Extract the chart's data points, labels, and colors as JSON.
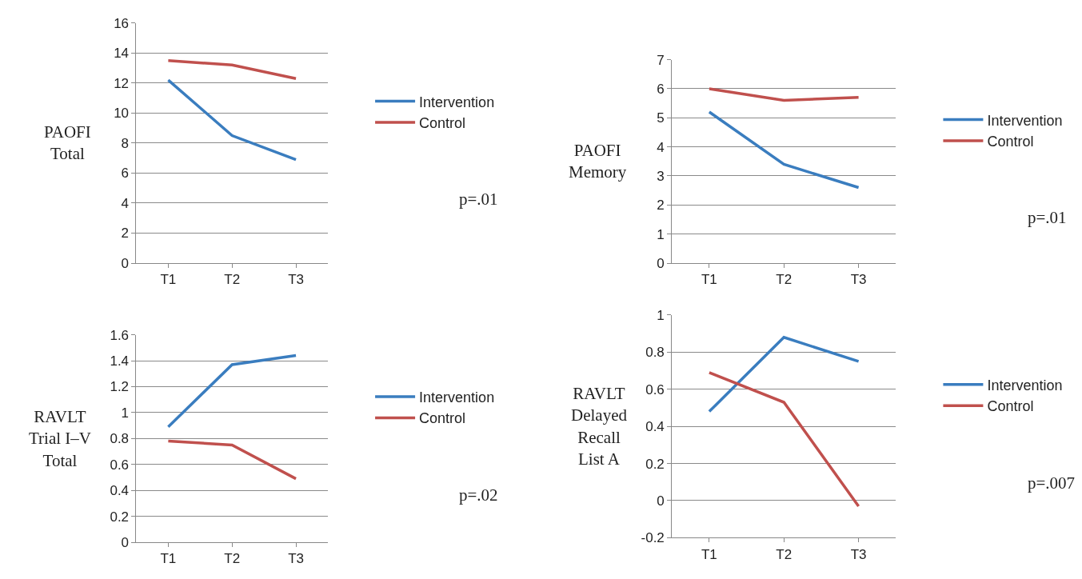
{
  "chart_data": [
    {
      "type": "line",
      "ylabel": "PAOFI\nTotal",
      "categories": [
        "T1",
        "T2",
        "T3"
      ],
      "ylim": [
        0,
        16
      ],
      "yticks": [
        0,
        2,
        4,
        6,
        8,
        10,
        12,
        14,
        16
      ],
      "grid": "y",
      "legend": "right",
      "marker": "none",
      "annotations": [
        "p=.01"
      ],
      "series": [
        {
          "name": "Intervention",
          "color": "#3a7dbf",
          "values": [
            12.2,
            8.5,
            6.9
          ]
        },
        {
          "name": "Control",
          "color": "#c0504d",
          "values": [
            13.5,
            13.2,
            12.3
          ]
        }
      ]
    },
    {
      "type": "line",
      "ylabel": "PAOFI\nMemory",
      "categories": [
        "T1",
        "T2",
        "T3"
      ],
      "ylim": [
        0,
        7
      ],
      "yticks": [
        0,
        1,
        2,
        3,
        4,
        5,
        6,
        7
      ],
      "grid": "y",
      "legend": "right",
      "marker": "none",
      "annotations": [
        "p=.01"
      ],
      "series": [
        {
          "name": "Intervention",
          "color": "#3a7dbf",
          "values": [
            5.2,
            3.4,
            2.6
          ]
        },
        {
          "name": "Control",
          "color": "#c0504d",
          "values": [
            6.0,
            5.6,
            5.7
          ]
        }
      ]
    },
    {
      "type": "line",
      "ylabel": "RAVLT\nTrial I–V\nTotal",
      "categories": [
        "T1",
        "T2",
        "T3"
      ],
      "ylim": [
        0,
        1.6
      ],
      "yticks": [
        0,
        0.2,
        0.4,
        0.6,
        0.8,
        1,
        1.2,
        1.4,
        1.6
      ],
      "grid": "y",
      "legend": "right",
      "marker": "none",
      "annotations": [
        "p=.02"
      ],
      "series": [
        {
          "name": "Intervention",
          "color": "#3a7dbf",
          "values": [
            0.89,
            1.37,
            1.44
          ]
        },
        {
          "name": "Control",
          "color": "#c0504d",
          "values": [
            0.78,
            0.75,
            0.49
          ]
        }
      ]
    },
    {
      "type": "line",
      "ylabel": "RAVLT\nDelayed\nRecall\nList A",
      "categories": [
        "T1",
        "T2",
        "T3"
      ],
      "ylim": [
        -0.2,
        1
      ],
      "yticks": [
        -0.2,
        0,
        0.2,
        0.4,
        0.6,
        0.8,
        1
      ],
      "grid": "y",
      "legend": "right",
      "marker": "none",
      "annotations": [
        "p=.007"
      ],
      "series": [
        {
          "name": "Intervention",
          "color": "#3a7dbf",
          "values": [
            0.48,
            0.88,
            0.75
          ]
        },
        {
          "name": "Control",
          "color": "#c0504d",
          "values": [
            0.69,
            0.53,
            -0.03
          ]
        }
      ]
    }
  ]
}
